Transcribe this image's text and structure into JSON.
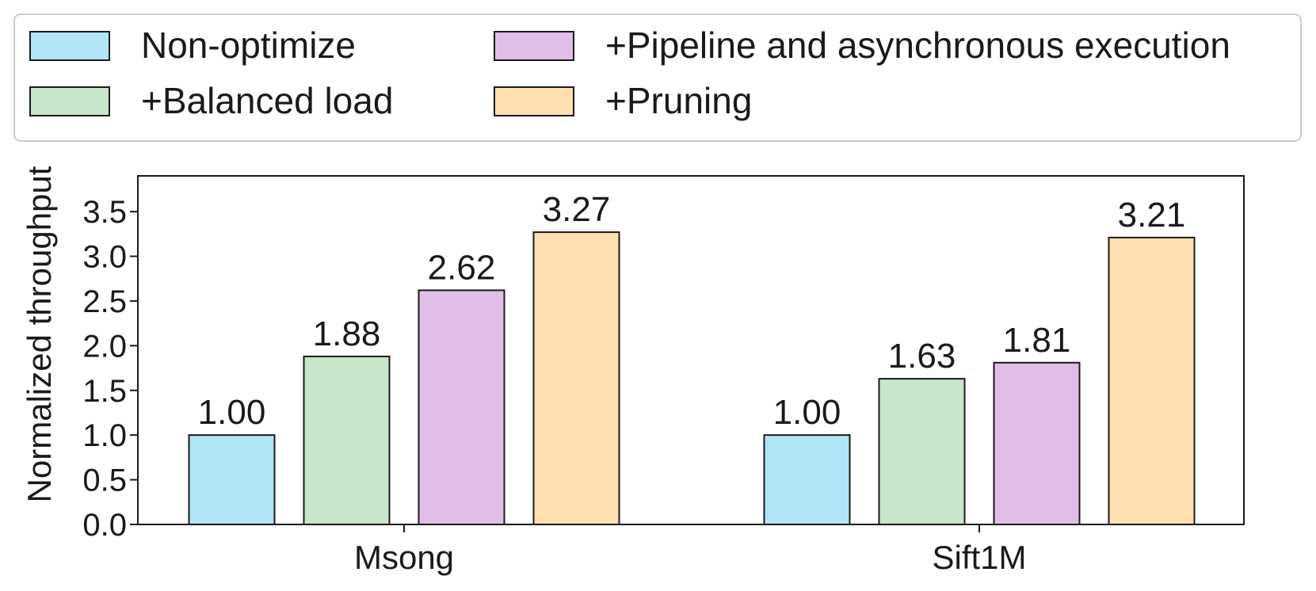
{
  "chart_data": {
    "type": "bar",
    "categories": [
      "Msong",
      "Sift1M"
    ],
    "series": [
      {
        "name": "Non-optimize",
        "values": [
          1.0,
          1.0
        ],
        "labels": [
          "1.00",
          "1.00"
        ],
        "color": "#b3e5f9"
      },
      {
        "name": "+Balanced load",
        "values": [
          1.88,
          1.63
        ],
        "labels": [
          "1.88",
          "1.63"
        ],
        "color": "#c8e6c9"
      },
      {
        "name": "+Pipeline and asynchronous execution",
        "values": [
          2.62,
          1.81
        ],
        "labels": [
          "2.62",
          "1.81"
        ],
        "color": "#e1bee7"
      },
      {
        "name": "+Pruning",
        "values": [
          3.27,
          3.21
        ],
        "labels": [
          "3.27",
          "3.21"
        ],
        "color": "#ffe0b2"
      }
    ],
    "ylabel": "Normalized throughput",
    "xlabel": "",
    "ylim": [
      0,
      3.9
    ],
    "yticks": [
      "0.0",
      "0.5",
      "1.0",
      "1.5",
      "2.0",
      "2.5",
      "3.0",
      "3.5"
    ],
    "legend": {
      "placement": "top",
      "columns": 2
    },
    "grid": false
  }
}
